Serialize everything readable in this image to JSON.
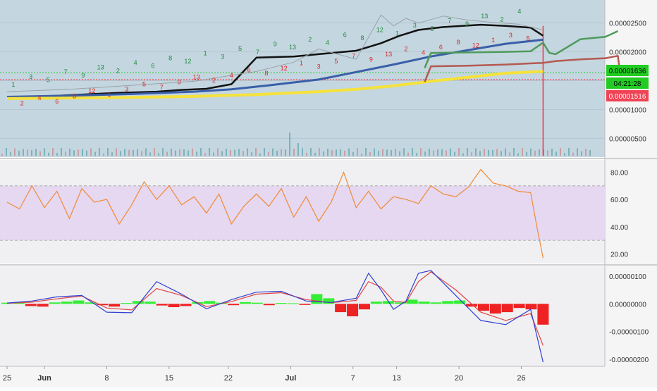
{
  "chart_data": [
    {
      "panel": "price",
      "type": "line",
      "background": "#c4d6e0",
      "y_ticks": [
        "0.00002500",
        "0.00002000",
        "0.00001500",
        "0.00001000",
        "0.00000500"
      ],
      "y_tick_values": [
        2.5e-05,
        2e-05,
        1.5e-05,
        1e-05,
        5e-06
      ],
      "ylim": [
        2e-06,
        2.85e-05
      ],
      "current_price_label": "0.00001636",
      "current_price": 1.636e-05,
      "countdown_label": "04:21:28",
      "low_price_label": "0.00001516",
      "low_price": 1.516e-05,
      "series": [
        {
          "role": "close",
          "color": "#111111",
          "x": [
            0,
            6,
            12,
            18,
            24,
            28,
            32,
            36,
            40,
            46,
            50,
            56,
            60,
            63,
            66,
            70,
            76,
            80,
            84,
            86
          ],
          "y": [
            1.21e-05,
            1.23e-05,
            1.26e-05,
            1.29e-05,
            1.31e-05,
            1.34e-05,
            1.36e-05,
            1.44e-05,
            1.9e-05,
            1.92e-05,
            1.96e-05,
            2.02e-05,
            2.15e-05,
            2.28e-05,
            2.38e-05,
            2.43e-05,
            2.47e-05,
            2.45e-05,
            2.42e-05,
            2.28e-05
          ]
        },
        {
          "role": "ma-blue",
          "color": "#3a5fa8",
          "x": [
            0,
            10,
            20,
            30,
            36,
            42,
            50,
            56,
            62,
            68,
            74,
            80,
            86
          ],
          "y": [
            1.22e-05,
            1.24e-05,
            1.27e-05,
            1.31e-05,
            1.35e-05,
            1.42e-05,
            1.52e-05,
            1.65e-05,
            1.78e-05,
            1.92e-05,
            2.03e-05,
            2.14e-05,
            2.21e-05
          ]
        },
        {
          "role": "ma-yellow",
          "color": "#f5e23b",
          "x": [
            0,
            10,
            20,
            30,
            40,
            50,
            56,
            62,
            68,
            74,
            80,
            86
          ],
          "y": [
            1.19e-05,
            1.2e-05,
            1.21e-05,
            1.23e-05,
            1.26e-05,
            1.31e-05,
            1.35e-05,
            1.41e-05,
            1.49e-05,
            1.56e-05,
            1.63e-05,
            1.66e-05
          ]
        },
        {
          "role": "band-green",
          "color": "#4e9a5c",
          "x": [
            67,
            68,
            74,
            80,
            84,
            86,
            87,
            88,
            92,
            96,
            98
          ],
          "y": [
            1.72e-05,
            1.98e-05,
            1.99e-05,
            2e-05,
            2.01e-05,
            2.16e-05,
            1.98e-05,
            1.96e-05,
            2.22e-05,
            2.26e-05,
            2.36e-05
          ]
        },
        {
          "role": "band-red",
          "color": "#b35a52",
          "x": [
            67,
            68,
            74,
            80,
            86,
            88,
            92,
            96,
            98,
            98.4
          ],
          "y": [
            1.48e-05,
            1.75e-05,
            1.76e-05,
            1.78e-05,
            1.81e-05,
            1.84e-05,
            1.87e-05,
            1.89e-05,
            1.93e-05,
            1.58e-05
          ]
        },
        {
          "role": "ma-gray",
          "color": "#9aa3aa",
          "x": [
            0,
            10,
            20,
            30,
            40,
            46,
            50,
            56,
            60,
            62,
            64,
            66,
            70,
            74,
            78,
            82,
            86
          ],
          "y": [
            1.31e-05,
            1.35e-05,
            1.42e-05,
            1.49e-05,
            1.66e-05,
            1.82e-05,
            2.05e-05,
            1.87e-05,
            2.64e-05,
            2.45e-05,
            2.58e-05,
            2.5e-05,
            2.62e-05,
            2.55e-05,
            2.51e-05,
            2.48e-05,
            2.38e-05
          ]
        }
      ],
      "markers": [
        "1",
        "2",
        "3",
        "4",
        "5",
        "6",
        "7",
        "8",
        "9",
        "12",
        "13"
      ]
    },
    {
      "panel": "rsi",
      "type": "line",
      "series_color": "#f08a37",
      "y_ticks": [
        "80.00",
        "60.00",
        "40.00",
        "20.00"
      ],
      "y_tick_values": [
        80,
        60,
        40,
        20
      ],
      "band": [
        30,
        70
      ],
      "ylim": [
        14,
        88
      ],
      "x": [
        0,
        2,
        4,
        6,
        8,
        10,
        12,
        14,
        16,
        18,
        20,
        22,
        24,
        26,
        28,
        30,
        32,
        34,
        36,
        38,
        40,
        42,
        44,
        46,
        48,
        50,
        52,
        54,
        56,
        58,
        60,
        62,
        64,
        66,
        68,
        70,
        72,
        74,
        76,
        78,
        80,
        82,
        84,
        85,
        86
      ],
      "values": [
        58,
        53,
        70,
        54,
        66,
        46,
        68,
        58,
        60,
        42,
        56,
        73,
        60,
        70,
        56,
        62,
        50,
        64,
        42,
        55,
        64,
        55,
        68,
        47,
        62,
        44,
        58,
        80,
        54,
        66,
        53,
        62,
        60,
        57,
        70,
        64,
        62,
        69,
        82,
        72,
        70,
        66,
        65,
        40,
        17
      ]
    },
    {
      "panel": "macd",
      "type": "bar",
      "y_ticks": [
        "0.00000100",
        "0.00000000",
        "-0.00000100",
        "-0.00000200"
      ],
      "y_tick_values": [
        1e-06,
        0,
        -1e-06,
        -2e-06
      ],
      "ylim": [
        -2.2e-06,
        1.3e-06
      ],
      "hist_pos_color": "#33ee33",
      "hist_neg_color": "#ee2222",
      "macd_color": "#2f3fd0",
      "signal_color": "#e04444",
      "macd": {
        "x": [
          0,
          4,
          8,
          12,
          16,
          20,
          24,
          28,
          32,
          36,
          40,
          44,
          48,
          52,
          56,
          58,
          60,
          62,
          64,
          66,
          68,
          72,
          76,
          80,
          84,
          86
        ],
        "y": [
          3e-08,
          1e-07,
          2.5e-07,
          3e-07,
          -3e-07,
          -3.2e-07,
          8e-07,
          3.5e-07,
          -1.8e-07,
          1.5e-07,
          4.2e-07,
          4.5e-07,
          1e-07,
          5e-08,
          2e-07,
          1.1e-06,
          5e-07,
          -2e-07,
          1e-07,
          1.1e-06,
          1.2e-06,
          3e-07,
          -6e-07,
          -7.5e-07,
          -2e-07,
          -2.1e-06
        ]
      },
      "signal": {
        "x": [
          0,
          4,
          8,
          12,
          16,
          20,
          24,
          28,
          32,
          36,
          40,
          44,
          48,
          52,
          56,
          58,
          60,
          62,
          64,
          66,
          68,
          72,
          76,
          80,
          84,
          86
        ],
        "y": [
          2e-08,
          6e-08,
          1.8e-07,
          2.8e-07,
          -1.5e-07,
          -2.2e-07,
          5.5e-07,
          3e-07,
          -1e-07,
          8e-08,
          3.5e-07,
          4e-07,
          1.5e-07,
          4e-08,
          1.2e-07,
          8e-07,
          6e-07,
          1e-07,
          5e-08,
          8e-07,
          1.15e-06,
          5e-07,
          -3e-07,
          -6e-07,
          -3.5e-07,
          -1.5e-06
        ]
      },
      "histogram": [
        4e-08,
        6e-08,
        -8e-08,
        -1e-07,
        5e-08,
        8e-08,
        1.2e-07,
        5e-08,
        -5e-08,
        -1e-07,
        3e-08,
        1e-07,
        8e-08,
        -6e-08,
        -1.2e-07,
        -8e-08,
        6e-08,
        1e-07,
        4e-08,
        -5e-08,
        6e-08,
        4e-08,
        -5e-08,
        3e-08,
        2e-08,
        -4e-08,
        3.5e-07,
        2e-07,
        -3e-07,
        -4.5e-07,
        -2e-07,
        8e-08,
        1e-07,
        5e-08,
        1.5e-07,
        8e-08,
        5e-08,
        1e-07,
        1.2e-07,
        -1e-07,
        -2.5e-07,
        -3.5e-07,
        -3e-07,
        -1.5e-07,
        -2e-07,
        -7.5e-07
      ]
    }
  ],
  "x_axis": {
    "labels": [
      "25",
      "Jun",
      "8",
      "15",
      "22",
      "Jul",
      "7",
      "13",
      "20",
      "26"
    ],
    "positions": [
      0,
      6,
      16,
      26,
      35.5,
      45.5,
      55.5,
      62.5,
      72.5,
      82.5
    ],
    "bold": [
      "Jun",
      "Jul"
    ]
  }
}
